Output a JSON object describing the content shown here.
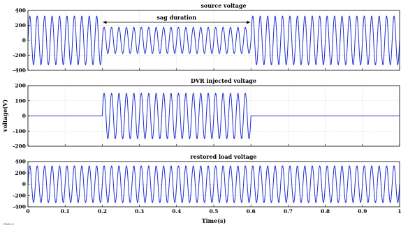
{
  "chart_data": [
    {
      "type": "line",
      "title": "source voltage",
      "annotation": "sag duration",
      "annotation_span": [
        0.2,
        0.6
      ],
      "xlim": [
        0,
        1
      ],
      "ylim": [
        -400,
        400
      ],
      "yticks": [
        400,
        200,
        0,
        -200,
        -400
      ],
      "frequency_hz": 50,
      "segments": [
        {
          "t_start": 0.0,
          "t_end": 0.2,
          "amplitude": 325
        },
        {
          "t_start": 0.2,
          "t_end": 0.6,
          "amplitude": 175
        },
        {
          "t_start": 0.6,
          "t_end": 1.0,
          "amplitude": 325
        }
      ],
      "color": "#1f2fd0"
    },
    {
      "type": "line",
      "title": "DVR injected voltage",
      "xlim": [
        0,
        1
      ],
      "ylim": [
        -200,
        200
      ],
      "yticks": [
        200,
        100,
        0,
        -100,
        -200
      ],
      "frequency_hz": 50,
      "segments": [
        {
          "t_start": 0.0,
          "t_end": 0.2,
          "amplitude": 0
        },
        {
          "t_start": 0.2,
          "t_end": 0.6,
          "amplitude": 150
        },
        {
          "t_start": 0.6,
          "t_end": 1.0,
          "amplitude": 0
        }
      ],
      "color": "#1f2fd0"
    },
    {
      "type": "line",
      "title": "restored load voltage",
      "xlim": [
        0,
        1
      ],
      "ylim": [
        -400,
        400
      ],
      "yticks": [
        400,
        200,
        0,
        -200,
        -400
      ],
      "frequency_hz": 50,
      "segments": [
        {
          "t_start": 0.0,
          "t_end": 1.0,
          "amplitude": 325
        }
      ],
      "color": "#1f2fd0"
    }
  ],
  "xticks": [
    0,
    0.1,
    0.2,
    0.3,
    0.4,
    0.5,
    0.6,
    0.7,
    0.8,
    0.9,
    1
  ],
  "xtick_labels": [
    "0",
    "0.1",
    "0.2",
    "0.3",
    "0.4",
    "0.5",
    "0.6",
    "0.7",
    "0.8",
    "0.9",
    "1"
  ],
  "xlabel": "Time(s)",
  "ylabel": "voltage(V)",
  "corner_note": "Offset=0"
}
